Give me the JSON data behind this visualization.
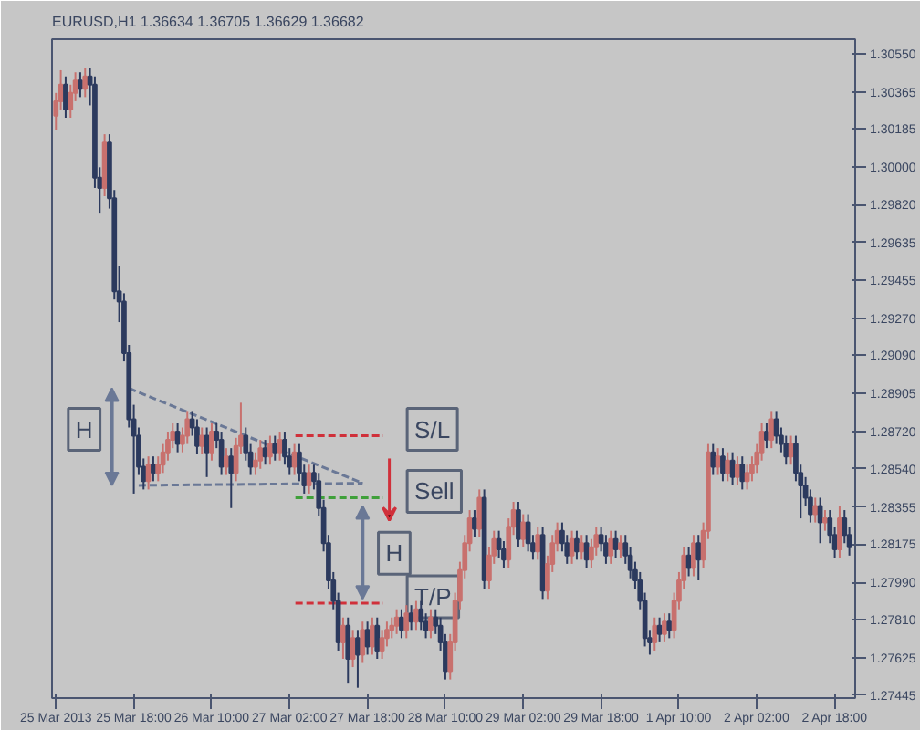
{
  "chart_data": {
    "type": "candlestick",
    "title": "EURUSD,H1  1.36634 1.36705 1.36629 1.36682",
    "categories": [
      "25 Mar 2013",
      null,
      null,
      null,
      null,
      null,
      null,
      null,
      null,
      null,
      null,
      null,
      null,
      null,
      null,
      null,
      "25 Mar 18:00",
      null,
      null,
      null,
      null,
      null,
      null,
      null,
      null,
      null,
      null,
      null,
      null,
      null,
      null,
      null,
      "26 Mar 10:00",
      null,
      null,
      null,
      null,
      null,
      null,
      null,
      null,
      null,
      null,
      null,
      null,
      null,
      null,
      null,
      "27 Mar 02:00",
      null,
      null,
      null,
      null,
      null,
      null,
      null,
      null,
      null,
      null,
      null,
      null,
      null,
      null,
      null,
      "27 Mar 18:00",
      null,
      null,
      null,
      null,
      null,
      null,
      null,
      null,
      null,
      null,
      null,
      null,
      null,
      null,
      null,
      "28 Mar 10:00",
      null,
      null,
      null,
      null,
      null,
      null,
      null,
      null,
      null,
      null,
      null,
      null,
      null,
      null,
      null,
      "29 Mar 02:00",
      null,
      null,
      null,
      null,
      null,
      null,
      null,
      null,
      null,
      null,
      null,
      null,
      null,
      null,
      null,
      "29 Mar 18:00",
      null,
      null,
      null,
      null,
      null,
      null,
      null,
      null,
      null,
      null,
      null,
      null,
      null,
      null,
      null,
      "1 Apr 10:00",
      null,
      null,
      null,
      null,
      null,
      null,
      null,
      null,
      null,
      null,
      null,
      null,
      null,
      null,
      null,
      "2 Apr 02:00",
      null,
      null,
      null,
      null,
      null,
      null,
      null,
      null,
      null,
      null,
      null,
      null,
      null,
      null,
      null,
      "2 Apr 18:00",
      null,
      null,
      null
    ],
    "ohlc": [
      [
        1.3025,
        1.3036,
        1.3018,
        1.3032
      ],
      [
        1.3032,
        1.3047,
        1.3028,
        1.304
      ],
      [
        1.304,
        1.3044,
        1.3024,
        1.3028
      ],
      [
        1.3028,
        1.304,
        1.3024,
        1.3036
      ],
      [
        1.3036,
        1.3046,
        1.3032,
        1.3042
      ],
      [
        1.3042,
        1.3046,
        1.3034,
        1.3038
      ],
      [
        1.3038,
        1.3048,
        1.3034,
        1.3044
      ],
      [
        1.3044,
        1.3048,
        1.303,
        1.304
      ],
      [
        1.304,
        1.3044,
        1.299,
        1.2995
      ],
      [
        1.2995,
        1.3,
        1.2978,
        1.299
      ],
      [
        1.299,
        1.3016,
        1.2986,
        1.3012
      ],
      [
        1.3012,
        1.3016,
        1.298,
        1.2985
      ],
      [
        1.2985,
        1.2989,
        1.2936,
        1.294
      ],
      [
        1.294,
        1.2952,
        1.2925,
        1.2935
      ],
      [
        1.2935,
        1.2939,
        1.2906,
        1.291
      ],
      [
        1.291,
        1.2914,
        1.2874,
        1.2878
      ],
      [
        1.2878,
        1.2885,
        1.2842,
        1.287
      ],
      [
        1.287,
        1.2874,
        1.2851,
        1.2855
      ],
      [
        1.2855,
        1.2859,
        1.2844,
        1.2848
      ],
      [
        1.2848,
        1.286,
        1.2844,
        1.2856
      ],
      [
        1.2856,
        1.286,
        1.2848,
        1.2852
      ],
      [
        1.2852,
        1.286,
        1.2848,
        1.2856
      ],
      [
        1.2856,
        1.2866,
        1.2852,
        1.2862
      ],
      [
        1.2862,
        1.2872,
        1.2858,
        1.2868
      ],
      [
        1.2868,
        1.2876,
        1.2864,
        1.2872
      ],
      [
        1.2872,
        1.2876,
        1.2862,
        1.2866
      ],
      [
        1.2866,
        1.2874,
        1.2862,
        1.287
      ],
      [
        1.287,
        1.2882,
        1.2866,
        1.2878
      ],
      [
        1.2878,
        1.2882,
        1.287,
        1.2874
      ],
      [
        1.2874,
        1.2878,
        1.2861,
        1.2865
      ],
      [
        1.2865,
        1.2874,
        1.2861,
        1.287
      ],
      [
        1.287,
        1.2874,
        1.285,
        1.2862
      ],
      [
        1.2862,
        1.2876,
        1.2858,
        1.2872
      ],
      [
        1.2872,
        1.2876,
        1.2864,
        1.2868
      ],
      [
        1.2868,
        1.2872,
        1.2851,
        1.2855
      ],
      [
        1.2855,
        1.2864,
        1.2851,
        1.286
      ],
      [
        1.286,
        1.2864,
        1.2835,
        1.2852
      ],
      [
        1.2852,
        1.2869,
        1.2848,
        1.2865
      ],
      [
        1.2865,
        1.2886,
        1.2861,
        1.287
      ],
      [
        1.287,
        1.2874,
        1.2858,
        1.2862
      ],
      [
        1.2862,
        1.2866,
        1.2851,
        1.2855
      ],
      [
        1.2855,
        1.2862,
        1.2851,
        1.2858
      ],
      [
        1.2858,
        1.2868,
        1.2854,
        1.2864
      ],
      [
        1.2864,
        1.2868,
        1.2856,
        1.286
      ],
      [
        1.286,
        1.287,
        1.2856,
        1.2866
      ],
      [
        1.2866,
        1.287,
        1.2858,
        1.2862
      ],
      [
        1.2862,
        1.2872,
        1.2858,
        1.2868
      ],
      [
        1.2868,
        1.2872,
        1.2856,
        1.286
      ],
      [
        1.286,
        1.2864,
        1.2851,
        1.2855
      ],
      [
        1.2855,
        1.2866,
        1.2851,
        1.2862
      ],
      [
        1.2862,
        1.2866,
        1.2848,
        1.2852
      ],
      [
        1.2852,
        1.2856,
        1.2842,
        1.2846
      ],
      [
        1.2846,
        1.2856,
        1.2842,
        1.2852
      ],
      [
        1.2852,
        1.2856,
        1.2844,
        1.2848
      ],
      [
        1.2848,
        1.2852,
        1.2831,
        1.2835
      ],
      [
        1.2835,
        1.2839,
        1.2814,
        1.2818
      ],
      [
        1.2818,
        1.2822,
        1.2796,
        1.28
      ],
      [
        1.28,
        1.2804,
        1.2786,
        1.279
      ],
      [
        1.279,
        1.2794,
        1.2766,
        1.277
      ],
      [
        1.277,
        1.2782,
        1.2762,
        1.2778
      ],
      [
        1.2778,
        1.2782,
        1.275,
        1.2762
      ],
      [
        1.2762,
        1.2776,
        1.2758,
        1.2772
      ],
      [
        1.2772,
        1.2776,
        1.2748,
        1.2764
      ],
      [
        1.2764,
        1.278,
        1.276,
        1.2776
      ],
      [
        1.2776,
        1.278,
        1.2764,
        1.2768
      ],
      [
        1.2768,
        1.2782,
        1.2764,
        1.2778
      ],
      [
        1.2778,
        1.2782,
        1.2762,
        1.2766
      ],
      [
        1.2766,
        1.2776,
        1.2762,
        1.2772
      ],
      [
        1.2772,
        1.278,
        1.2768,
        1.2776
      ],
      [
        1.2776,
        1.2782,
        1.2772,
        1.2778
      ],
      [
        1.2778,
        1.2786,
        1.2774,
        1.2782
      ],
      [
        1.2782,
        1.2786,
        1.2772,
        1.2776
      ],
      [
        1.2776,
        1.2788,
        1.2772,
        1.2784
      ],
      [
        1.2784,
        1.2788,
        1.2776,
        1.278
      ],
      [
        1.278,
        1.279,
        1.2776,
        1.2786
      ],
      [
        1.2786,
        1.279,
        1.2776,
        1.278
      ],
      [
        1.278,
        1.2784,
        1.2772,
        1.2776
      ],
      [
        1.2776,
        1.2786,
        1.2772,
        1.2782
      ],
      [
        1.2782,
        1.2786,
        1.2774,
        1.2778
      ],
      [
        1.2778,
        1.2782,
        1.2766,
        1.277
      ],
      [
        1.277,
        1.2774,
        1.2752,
        1.2756
      ],
      [
        1.2756,
        1.2774,
        1.2752,
        1.277
      ],
      [
        1.277,
        1.2794,
        1.2766,
        1.279
      ],
      [
        1.279,
        1.2809,
        1.2786,
        1.2805
      ],
      [
        1.2805,
        1.2822,
        1.2801,
        1.2818
      ],
      [
        1.2818,
        1.2834,
        1.2814,
        1.283
      ],
      [
        1.283,
        1.2834,
        1.2821,
        1.2825
      ],
      [
        1.2825,
        1.2844,
        1.2821,
        1.284
      ],
      [
        1.284,
        1.2844,
        1.2796,
        1.28
      ],
      [
        1.28,
        1.2816,
        1.2796,
        1.2812
      ],
      [
        1.2812,
        1.2824,
        1.2808,
        1.282
      ],
      [
        1.282,
        1.2824,
        1.2811,
        1.2815
      ],
      [
        1.2815,
        1.2819,
        1.2806,
        1.281
      ],
      [
        1.281,
        1.283,
        1.2806,
        1.2826
      ],
      [
        1.2826,
        1.2838,
        1.2822,
        1.2834
      ],
      [
        1.2834,
        1.2838,
        1.2816,
        1.282
      ],
      [
        1.282,
        1.2832,
        1.2816,
        1.2828
      ],
      [
        1.2828,
        1.2832,
        1.2814,
        1.2818
      ],
      [
        1.2818,
        1.2822,
        1.281,
        1.2814
      ],
      [
        1.2814,
        1.2826,
        1.281,
        1.2822
      ],
      [
        1.2822,
        1.2826,
        1.2791,
        1.2795
      ],
      [
        1.2795,
        1.2812,
        1.2791,
        1.2808
      ],
      [
        1.2808,
        1.2822,
        1.2804,
        1.2818
      ],
      [
        1.2818,
        1.2828,
        1.2814,
        1.2824
      ],
      [
        1.2824,
        1.2828,
        1.2814,
        1.2818
      ],
      [
        1.2818,
        1.2822,
        1.2808,
        1.2812
      ],
      [
        1.2812,
        1.2824,
        1.2808,
        1.282
      ],
      [
        1.282,
        1.2824,
        1.281,
        1.2814
      ],
      [
        1.2814,
        1.2822,
        1.281,
        1.2818
      ],
      [
        1.2818,
        1.2822,
        1.2806,
        1.281
      ],
      [
        1.281,
        1.282,
        1.2806,
        1.2816
      ],
      [
        1.2816,
        1.2826,
        1.2812,
        1.2822
      ],
      [
        1.2822,
        1.2826,
        1.2814,
        1.2818
      ],
      [
        1.2818,
        1.2822,
        1.2808,
        1.2812
      ],
      [
        1.2812,
        1.2824,
        1.2808,
        1.282
      ],
      [
        1.282,
        1.2824,
        1.2811,
        1.2815
      ],
      [
        1.2815,
        1.2822,
        1.2811,
        1.2818
      ],
      [
        1.2818,
        1.2822,
        1.2808,
        1.2812
      ],
      [
        1.2812,
        1.2816,
        1.2801,
        1.2805
      ],
      [
        1.2805,
        1.2809,
        1.2796,
        1.28
      ],
      [
        1.28,
        1.2804,
        1.2786,
        1.279
      ],
      [
        1.279,
        1.2794,
        1.2768,
        1.2772
      ],
      [
        1.2772,
        1.2776,
        1.2764,
        1.277
      ],
      [
        1.277,
        1.2782,
        1.2766,
        1.2778
      ],
      [
        1.2778,
        1.2782,
        1.277,
        1.2774
      ],
      [
        1.2774,
        1.2784,
        1.277,
        1.278
      ],
      [
        1.278,
        1.2784,
        1.2772,
        1.2776
      ],
      [
        1.2776,
        1.2794,
        1.2772,
        1.279
      ],
      [
        1.279,
        1.2804,
        1.2786,
        1.28
      ],
      [
        1.28,
        1.2816,
        1.2796,
        1.2812
      ],
      [
        1.2812,
        1.2816,
        1.2802,
        1.2806
      ],
      [
        1.2806,
        1.2822,
        1.2802,
        1.2818
      ],
      [
        1.2818,
        1.2822,
        1.28,
        1.281
      ],
      [
        1.281,
        1.2828,
        1.2806,
        1.2824
      ],
      [
        1.2824,
        1.2866,
        1.282,
        1.2862
      ],
      [
        1.2862,
        1.2866,
        1.2851,
        1.2855
      ],
      [
        1.2855,
        1.2864,
        1.2851,
        1.286
      ],
      [
        1.286,
        1.2864,
        1.2848,
        1.2852
      ],
      [
        1.2852,
        1.2862,
        1.2848,
        1.2858
      ],
      [
        1.2858,
        1.2862,
        1.2846,
        1.285
      ],
      [
        1.285,
        1.286,
        1.2846,
        1.2856
      ],
      [
        1.2856,
        1.286,
        1.2844,
        1.2848
      ],
      [
        1.2848,
        1.2856,
        1.2844,
        1.2852
      ],
      [
        1.2852,
        1.286,
        1.2848,
        1.2856
      ],
      [
        1.2856,
        1.2866,
        1.2852,
        1.2862
      ],
      [
        1.2862,
        1.2876,
        1.2858,
        1.2872
      ],
      [
        1.2872,
        1.2876,
        1.2864,
        1.2868
      ],
      [
        1.2868,
        1.2882,
        1.2864,
        1.2878
      ],
      [
        1.2878,
        1.2882,
        1.2866,
        1.287
      ],
      [
        1.287,
        1.2874,
        1.2862,
        1.2866
      ],
      [
        1.2866,
        1.287,
        1.2856,
        1.286
      ],
      [
        1.286,
        1.287,
        1.2856,
        1.2866
      ],
      [
        1.2866,
        1.287,
        1.2848,
        1.2852
      ],
      [
        1.2852,
        1.2856,
        1.283,
        1.2846
      ],
      [
        1.2846,
        1.285,
        1.2836,
        1.284
      ],
      [
        1.284,
        1.2844,
        1.2828,
        1.2832
      ],
      [
        1.2832,
        1.284,
        1.2828,
        1.2836
      ],
      [
        1.2836,
        1.284,
        1.2818,
        1.2828
      ],
      [
        1.2828,
        1.2834,
        1.2824,
        1.283
      ],
      [
        1.283,
        1.2834,
        1.2818,
        1.2822
      ],
      [
        1.2822,
        1.2826,
        1.2811,
        1.2815
      ],
      [
        1.2815,
        1.2836,
        1.2811,
        1.283
      ],
      [
        1.283,
        1.2834,
        1.2818,
        1.2822
      ],
      [
        1.2822,
        1.2826,
        1.2812,
        1.2816
      ]
    ],
    "colors": [
      "#c8716e",
      "#c8716e",
      "#2c3a5e",
      "#c8716e",
      "#c8716e",
      "#2c3a5e",
      "#c8716e",
      "#2c3a5e",
      "#2c3a5e",
      "#2c3a5e",
      "#c8716e",
      "#2c3a5e",
      "#2c3a5e",
      "#2c3a5e",
      "#2c3a5e",
      "#2c3a5e",
      "#2c3a5e",
      "#2c3a5e",
      "#2c3a5e",
      "#c8716e",
      "#2c3a5e",
      "#c8716e",
      "#c8716e",
      "#c8716e",
      "#c8716e",
      "#2c3a5e",
      "#c8716e",
      "#c8716e",
      "#2c3a5e",
      "#2c3a5e",
      "#c8716e",
      "#2c3a5e",
      "#c8716e",
      "#2c3a5e",
      "#2c3a5e",
      "#c8716e",
      "#2c3a5e",
      "#c8716e",
      "#c8716e",
      "#2c3a5e",
      "#2c3a5e",
      "#c8716e",
      "#c8716e",
      "#2c3a5e",
      "#c8716e",
      "#2c3a5e",
      "#c8716e",
      "#2c3a5e",
      "#2c3a5e",
      "#c8716e",
      "#2c3a5e",
      "#2c3a5e",
      "#c8716e",
      "#2c3a5e",
      "#2c3a5e",
      "#2c3a5e",
      "#2c3a5e",
      "#2c3a5e",
      "#2c3a5e",
      "#c8716e",
      "#2c3a5e",
      "#c8716e",
      "#2c3a5e",
      "#c8716e",
      "#2c3a5e",
      "#c8716e",
      "#2c3a5e",
      "#c8716e",
      "#c8716e",
      "#c8716e",
      "#c8716e",
      "#2c3a5e",
      "#c8716e",
      "#2c3a5e",
      "#c8716e",
      "#2c3a5e",
      "#2c3a5e",
      "#c8716e",
      "#2c3a5e",
      "#2c3a5e",
      "#2c3a5e",
      "#c8716e",
      "#c8716e",
      "#c8716e",
      "#c8716e",
      "#c8716e",
      "#2c3a5e",
      "#c8716e",
      "#2c3a5e",
      "#c8716e",
      "#c8716e",
      "#2c3a5e",
      "#2c3a5e",
      "#c8716e",
      "#c8716e",
      "#2c3a5e",
      "#c8716e",
      "#2c3a5e",
      "#2c3a5e",
      "#c8716e",
      "#2c3a5e",
      "#c8716e",
      "#c8716e",
      "#c8716e",
      "#2c3a5e",
      "#2c3a5e",
      "#c8716e",
      "#2c3a5e",
      "#c8716e",
      "#2c3a5e",
      "#c8716e",
      "#c8716e",
      "#2c3a5e",
      "#2c3a5e",
      "#c8716e",
      "#2c3a5e",
      "#c8716e",
      "#2c3a5e",
      "#2c3a5e",
      "#2c3a5e",
      "#2c3a5e",
      "#2c3a5e",
      "#2c3a5e",
      "#c8716e",
      "#2c3a5e",
      "#c8716e",
      "#2c3a5e",
      "#c8716e",
      "#c8716e",
      "#c8716e",
      "#2c3a5e",
      "#c8716e",
      "#2c3a5e",
      "#c8716e",
      "#c8716e",
      "#2c3a5e",
      "#c8716e",
      "#2c3a5e",
      "#c8716e",
      "#2c3a5e",
      "#c8716e",
      "#2c3a5e",
      "#c8716e",
      "#c8716e",
      "#c8716e",
      "#c8716e",
      "#2c3a5e",
      "#c8716e",
      "#2c3a5e",
      "#2c3a5e",
      "#2c3a5e",
      "#c8716e",
      "#2c3a5e",
      "#2c3a5e",
      "#2c3a5e",
      "#2c3a5e",
      "#c8716e",
      "#2c3a5e",
      "#c8716e",
      "#2c3a5e",
      "#2c3a5e",
      "#c8716e",
      "#2c3a5e",
      "#2c3a5e"
    ],
    "ylim": [
      1.2743,
      1.3062
    ],
    "yticks": [
      {
        "value": 1.27445,
        "label": "1.27445"
      },
      {
        "value": 1.27625,
        "label": "1.27625"
      },
      {
        "value": 1.2781,
        "label": "1.27810"
      },
      {
        "value": 1.2799,
        "label": "1.27990"
      },
      {
        "value": 1.28175,
        "label": "1.28175"
      },
      {
        "value": 1.28355,
        "label": "1.28355"
      },
      {
        "value": 1.2854,
        "label": "1.28540"
      },
      {
        "value": 1.2872,
        "label": "1.28720"
      },
      {
        "value": 1.28905,
        "label": "1.28905"
      },
      {
        "value": 1.2909,
        "label": "1.29090"
      },
      {
        "value": 1.2927,
        "label": "1.29270"
      },
      {
        "value": 1.29455,
        "label": "1.29455"
      },
      {
        "value": 1.29635,
        "label": "1.29635"
      },
      {
        "value": 1.2982,
        "label": "1.29820"
      },
      {
        "value": 1.3,
        "label": "1.30000"
      },
      {
        "value": 1.30185,
        "label": "1.30185"
      },
      {
        "value": 1.30365,
        "label": "1.30365"
      },
      {
        "value": 1.3055,
        "label": "1.30550"
      }
    ],
    "ref_lines": [
      {
        "axis": "y",
        "value": 1.287,
        "label": "S/L",
        "color": "#d0303a",
        "line_style": "dashed"
      },
      {
        "axis": "y",
        "value": 1.284,
        "label": "Sell",
        "color": "#3fa03a",
        "line_style": "dashed"
      },
      {
        "axis": "y",
        "value": 1.2789,
        "label": "T/P",
        "color": "#d0303a",
        "line_style": "dashed"
      }
    ],
    "series": [
      {
        "type": "line",
        "color": "#6a7896",
        "line_style": "dashed",
        "values": [
          null,
          null,
          null,
          null,
          null,
          null,
          null,
          null,
          null,
          null,
          null,
          null,
          null,
          null,
          null,
          1.2893,
          null,
          null,
          null,
          null,
          null,
          null,
          null,
          null,
          null,
          null,
          null,
          null,
          null,
          null,
          null,
          null,
          null,
          null,
          null,
          null,
          null,
          null,
          null,
          null,
          null,
          null,
          null,
          null,
          null,
          null,
          null,
          null,
          null,
          null,
          null,
          null,
          null,
          null,
          null,
          null,
          null,
          null,
          null,
          null,
          null,
          null,
          null,
          1.2847,
          null,
          null,
          null,
          null,
          null,
          null,
          null,
          null,
          null,
          null,
          null,
          null,
          null,
          null,
          null,
          null,
          null,
          null,
          null,
          null,
          null,
          null,
          null,
          null,
          null,
          null,
          null,
          null,
          null,
          null,
          null,
          null,
          null,
          null,
          null,
          null,
          null,
          null,
          null,
          null,
          null,
          null,
          null,
          null,
          null,
          null,
          null,
          null,
          null,
          null,
          null,
          null,
          null,
          null,
          null,
          null,
          null,
          null,
          null,
          null,
          null,
          null,
          null,
          null,
          null,
          null,
          null,
          null,
          null,
          null,
          null,
          null,
          null,
          null,
          null,
          null,
          null,
          null,
          null,
          null,
          null,
          null,
          null,
          null,
          null,
          null,
          null,
          null,
          null,
          null,
          null,
          null,
          null,
          null,
          null,
          null,
          null,
          null,
          null,
          null
        ]
      },
      {
        "type": "line",
        "color": "#6a7896",
        "line_style": "dashed",
        "values": [
          null,
          null,
          null,
          null,
          null,
          null,
          null,
          null,
          null,
          null,
          null,
          null,
          null,
          null,
          null,
          null,
          null,
          1.2846,
          null,
          null,
          null,
          null,
          null,
          null,
          null,
          null,
          null,
          null,
          null,
          null,
          null,
          null,
          null,
          null,
          null,
          null,
          null,
          null,
          null,
          null,
          null,
          null,
          null,
          null,
          null,
          null,
          null,
          null,
          null,
          null,
          null,
          null,
          null,
          null,
          null,
          null,
          null,
          null,
          null,
          null,
          null,
          null,
          null,
          1.2847,
          null,
          null,
          null,
          null,
          null,
          null,
          null,
          null,
          null,
          null,
          null,
          null,
          null,
          null,
          null,
          null,
          null,
          null,
          null,
          null,
          null,
          null,
          null,
          null,
          null,
          null,
          null,
          null,
          null,
          null,
          null,
          null,
          null,
          null,
          null,
          null,
          null,
          null,
          null,
          null,
          null,
          null,
          null,
          null,
          null,
          null,
          null,
          null,
          null,
          null,
          null,
          null,
          null,
          null,
          null,
          null,
          null,
          null,
          null,
          null,
          null,
          null,
          null,
          null,
          null,
          null,
          null,
          null,
          null,
          null,
          null,
          null,
          null,
          null,
          null,
          null,
          null,
          null,
          null,
          null,
          null,
          null,
          null,
          null,
          null,
          null,
          null,
          null,
          null,
          null,
          null,
          null,
          null,
          null,
          null,
          null,
          null,
          null,
          null,
          null
        ]
      }
    ],
    "annotations": [
      "H",
      "H"
    ]
  }
}
